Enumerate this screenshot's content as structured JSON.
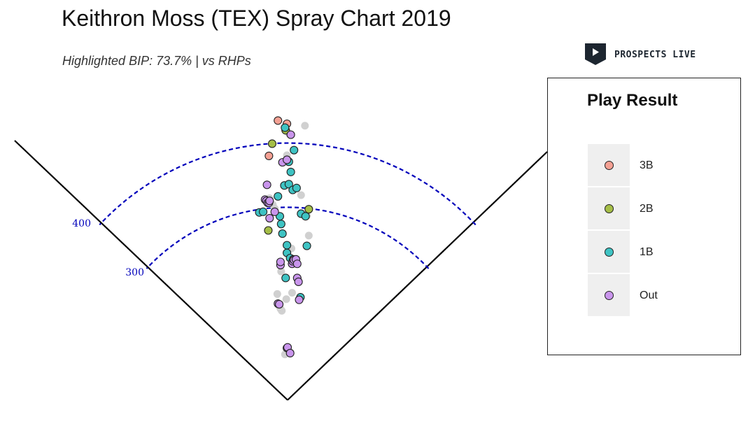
{
  "chart_data": {
    "type": "scatter",
    "title": "Keithron Moss (TEX) Spray Chart 2019",
    "subtitle": "Highlighted BIP: 73.7% | vs RHPs",
    "distance_labels": [
      "400",
      "300"
    ],
    "legend": {
      "title": "Play Result",
      "items": [
        {
          "label": "3B",
          "color": "#f4a093"
        },
        {
          "label": "2B",
          "color": "#a5be47"
        },
        {
          "label": "1B",
          "color": "#3ec3c3"
        },
        {
          "label": "Out",
          "color": "#c995ec"
        }
      ]
    },
    "colors": {
      "3B": "#f4a093",
      "2B": "#a5be47",
      "1B": "#3ec3c3",
      "Out": "#c995ec",
      "other": "#d0d0d0",
      "arc": "#0000bb"
    },
    "points": [
      {
        "x": -15,
        "y": 435,
        "result": "3B"
      },
      {
        "x": -1,
        "y": 430,
        "result": "3B"
      },
      {
        "x": -29,
        "y": 380,
        "result": "3B"
      },
      {
        "x": -24,
        "y": 399,
        "result": "2B"
      },
      {
        "x": -3,
        "y": 420,
        "result": "2B"
      },
      {
        "x": -30,
        "y": 264,
        "result": "2B"
      },
      {
        "x": 33,
        "y": 297,
        "result": "2B"
      },
      {
        "x": -4,
        "y": 424,
        "result": "1B"
      },
      {
        "x": 10,
        "y": 389,
        "result": "1B"
      },
      {
        "x": 2,
        "y": 371,
        "result": "1B"
      },
      {
        "x": 5,
        "y": 355,
        "result": "1B"
      },
      {
        "x": -5,
        "y": 334,
        "result": "1B"
      },
      {
        "x": 2,
        "y": 336,
        "result": "1B"
      },
      {
        "x": 8,
        "y": 327,
        "result": "1B"
      },
      {
        "x": 14,
        "y": 330,
        "result": "1B"
      },
      {
        "x": -44,
        "y": 292,
        "result": "1B"
      },
      {
        "x": -38,
        "y": 293,
        "result": "1B"
      },
      {
        "x": -15,
        "y": 317,
        "result": "1B"
      },
      {
        "x": -12,
        "y": 286,
        "result": "1B"
      },
      {
        "x": -10,
        "y": 274,
        "result": "1B"
      },
      {
        "x": -8,
        "y": 259,
        "result": "1B"
      },
      {
        "x": -1,
        "y": 241,
        "result": "1B"
      },
      {
        "x": -1,
        "y": 229,
        "result": "1B"
      },
      {
        "x": 4,
        "y": 221,
        "result": "1B"
      },
      {
        "x": -3,
        "y": 190,
        "result": "1B"
      },
      {
        "x": 21,
        "y": 290,
        "result": "1B"
      },
      {
        "x": 28,
        "y": 286,
        "result": "1B"
      },
      {
        "x": 30,
        "y": 240,
        "result": "1B"
      },
      {
        "x": 20,
        "y": 160,
        "result": "1B"
      },
      {
        "x": 5,
        "y": 413,
        "result": "Out"
      },
      {
        "x": -8,
        "y": 370,
        "result": "Out"
      },
      {
        "x": -1,
        "y": 374,
        "result": "Out"
      },
      {
        "x": -32,
        "y": 335,
        "result": "Out"
      },
      {
        "x": -35,
        "y": 312,
        "result": "Out"
      },
      {
        "x": -33,
        "y": 310,
        "result": "Out"
      },
      {
        "x": -31,
        "y": 307,
        "result": "Out"
      },
      {
        "x": -29,
        "y": 307,
        "result": "Out"
      },
      {
        "x": -28,
        "y": 310,
        "result": "Out"
      },
      {
        "x": -28,
        "y": 283,
        "result": "Out"
      },
      {
        "x": -20,
        "y": 293,
        "result": "Out"
      },
      {
        "x": -11,
        "y": 210,
        "result": "Out"
      },
      {
        "x": -11,
        "y": 215,
        "result": "Out"
      },
      {
        "x": -15,
        "y": 150,
        "result": "Out"
      },
      {
        "x": -13,
        "y": 149,
        "result": "Out"
      },
      {
        "x": 7,
        "y": 212,
        "result": "Out"
      },
      {
        "x": 8,
        "y": 216,
        "result": "Out"
      },
      {
        "x": 9,
        "y": 219,
        "result": "Out"
      },
      {
        "x": 10,
        "y": 218,
        "result": "Out"
      },
      {
        "x": 13,
        "y": 219,
        "result": "Out"
      },
      {
        "x": 15,
        "y": 212,
        "result": "Out"
      },
      {
        "x": 15,
        "y": 190,
        "result": "Out"
      },
      {
        "x": 17,
        "y": 184,
        "result": "Out"
      },
      {
        "x": 18,
        "y": 156,
        "result": "Out"
      },
      {
        "x": -1,
        "y": 81,
        "result": "Out"
      },
      {
        "x": 0,
        "y": 82,
        "result": "Out"
      },
      {
        "x": 4,
        "y": 73,
        "result": "Out"
      },
      {
        "x": 27,
        "y": 427,
        "result": "other"
      },
      {
        "x": 1,
        "y": 416,
        "result": "other"
      },
      {
        "x": -1,
        "y": 381,
        "result": "other"
      },
      {
        "x": 1,
        "y": 370,
        "result": "other"
      },
      {
        "x": -28,
        "y": 314,
        "result": "other"
      },
      {
        "x": -23,
        "y": 304,
        "result": "other"
      },
      {
        "x": -20,
        "y": 298,
        "result": "other"
      },
      {
        "x": 6,
        "y": 236,
        "result": "other"
      },
      {
        "x": -10,
        "y": 200,
        "result": "other"
      },
      {
        "x": -16,
        "y": 165,
        "result": "other"
      },
      {
        "x": -13,
        "y": 146,
        "result": "other"
      },
      {
        "x": -11,
        "y": 142,
        "result": "other"
      },
      {
        "x": -9,
        "y": 139,
        "result": "other"
      },
      {
        "x": -4,
        "y": 71,
        "result": "other"
      },
      {
        "x": 4,
        "y": 74,
        "result": "other"
      },
      {
        "x": -2,
        "y": 157,
        "result": "other"
      },
      {
        "x": 7,
        "y": 167,
        "result": "other"
      },
      {
        "x": 21,
        "y": 319,
        "result": "other"
      },
      {
        "x": 30,
        "y": 287,
        "result": "other"
      },
      {
        "x": 33,
        "y": 256,
        "result": "other"
      }
    ]
  }
}
